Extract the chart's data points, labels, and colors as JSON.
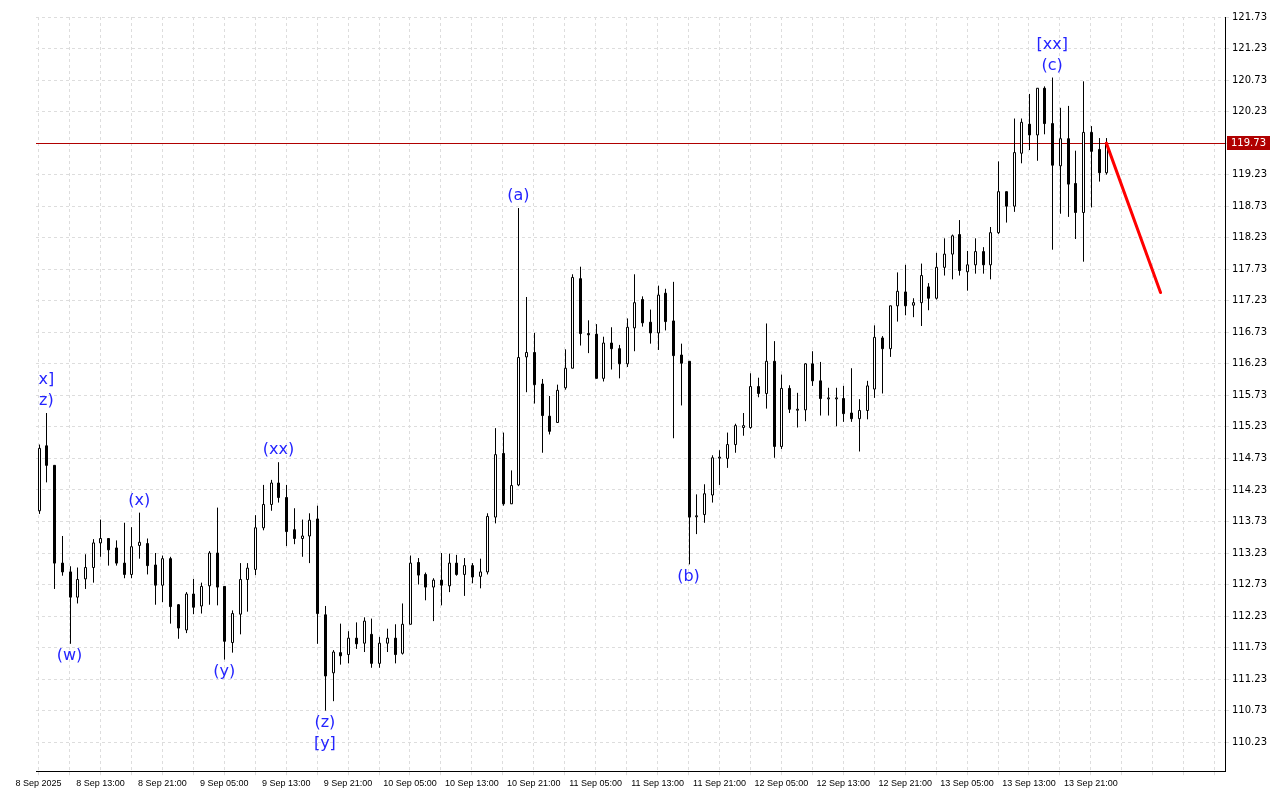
{
  "chart_data": {
    "type": "candlestick",
    "x": [
      "2025-09-08T05:00",
      "2025-09-08T06:00",
      "2025-09-08T07:00",
      "2025-09-08T08:00",
      "2025-09-08T09:00",
      "2025-09-08T10:00",
      "2025-09-08T11:00",
      "2025-09-08T12:00",
      "2025-09-08T13:00",
      "2025-09-08T14:00",
      "2025-09-08T15:00",
      "2025-09-08T16:00",
      "2025-09-08T17:00",
      "2025-09-08T18:00",
      "2025-09-08T19:00",
      "2025-09-08T20:00",
      "2025-09-08T21:00",
      "2025-09-08T22:00",
      "2025-09-08T23:00",
      "2025-09-09T00:00",
      "2025-09-09T01:00",
      "2025-09-09T02:00",
      "2025-09-09T03:00",
      "2025-09-09T04:00",
      "2025-09-09T05:00",
      "2025-09-09T06:00",
      "2025-09-09T07:00",
      "2025-09-09T08:00",
      "2025-09-09T09:00",
      "2025-09-09T10:00",
      "2025-09-09T11:00",
      "2025-09-09T12:00",
      "2025-09-09T13:00",
      "2025-09-09T14:00",
      "2025-09-09T15:00",
      "2025-09-09T16:00",
      "2025-09-09T17:00",
      "2025-09-09T18:00",
      "2025-09-09T19:00",
      "2025-09-09T20:00",
      "2025-09-09T21:00",
      "2025-09-09T22:00",
      "2025-09-09T23:00",
      "2025-09-10T00:00",
      "2025-09-10T01:00",
      "2025-09-10T02:00",
      "2025-09-10T03:00",
      "2025-09-10T04:00",
      "2025-09-10T05:00",
      "2025-09-10T06:00",
      "2025-09-10T07:00",
      "2025-09-10T08:00",
      "2025-09-10T09:00",
      "2025-09-10T10:00",
      "2025-09-10T11:00",
      "2025-09-10T12:00",
      "2025-09-10T13:00",
      "2025-09-10T14:00",
      "2025-09-10T15:00",
      "2025-09-10T16:00",
      "2025-09-10T17:00",
      "2025-09-10T18:00",
      "2025-09-10T19:00",
      "2025-09-10T20:00",
      "2025-09-10T21:00",
      "2025-09-10T22:00",
      "2025-09-10T23:00",
      "2025-09-11T00:00",
      "2025-09-11T01:00",
      "2025-09-11T02:00",
      "2025-09-11T03:00",
      "2025-09-11T04:00",
      "2025-09-11T05:00",
      "2025-09-11T06:00",
      "2025-09-11T07:00",
      "2025-09-11T08:00",
      "2025-09-11T09:00",
      "2025-09-11T10:00",
      "2025-09-11T11:00",
      "2025-09-11T12:00",
      "2025-09-11T13:00",
      "2025-09-11T14:00",
      "2025-09-11T15:00",
      "2025-09-11T16:00",
      "2025-09-11T17:00",
      "2025-09-11T18:00",
      "2025-09-11T19:00",
      "2025-09-11T20:00",
      "2025-09-11T21:00",
      "2025-09-11T22:00",
      "2025-09-11T23:00",
      "2025-09-12T00:00",
      "2025-09-12T01:00",
      "2025-09-12T02:00",
      "2025-09-12T03:00",
      "2025-09-12T04:00",
      "2025-09-12T05:00",
      "2025-09-12T06:00",
      "2025-09-12T07:00",
      "2025-09-12T08:00",
      "2025-09-12T09:00",
      "2025-09-12T10:00",
      "2025-09-12T11:00",
      "2025-09-12T12:00",
      "2025-09-12T13:00",
      "2025-09-12T14:00",
      "2025-09-12T15:00",
      "2025-09-12T16:00",
      "2025-09-12T17:00",
      "2025-09-12T18:00",
      "2025-09-12T19:00",
      "2025-09-12T20:00",
      "2025-09-12T21:00",
      "2025-09-12T22:00",
      "2025-09-12T23:00",
      "2025-09-13T00:00",
      "2025-09-13T01:00",
      "2025-09-13T02:00",
      "2025-09-13T03:00",
      "2025-09-13T04:00",
      "2025-09-13T05:00",
      "2025-09-13T06:00",
      "2025-09-13T07:00",
      "2025-09-13T08:00",
      "2025-09-13T09:00",
      "2025-09-13T10:00",
      "2025-09-13T11:00",
      "2025-09-13T12:00",
      "2025-09-13T13:00",
      "2025-09-13T14:00",
      "2025-09-13T15:00",
      "2025-09-13T16:00",
      "2025-09-13T17:00",
      "2025-09-13T18:00",
      "2025-09-13T19:00",
      "2025-09-13T20:00",
      "2025-09-13T21:00",
      "2025-09-13T22:00",
      "2025-09-13T23:00"
    ],
    "ohlc": [
      [
        113.9,
        114.95,
        113.85,
        114.89
      ],
      [
        114.93,
        115.45,
        114.35,
        114.62
      ],
      [
        114.62,
        114.62,
        112.66,
        113.07
      ],
      [
        113.07,
        113.5,
        112.87,
        112.93
      ],
      [
        112.93,
        113.02,
        111.79,
        112.53
      ],
      [
        112.53,
        113.0,
        112.43,
        112.81
      ],
      [
        112.82,
        113.21,
        112.66,
        113.0
      ],
      [
        113.0,
        113.45,
        112.76,
        113.39
      ],
      [
        113.39,
        113.76,
        113.17,
        113.46
      ],
      [
        113.46,
        113.46,
        113.03,
        113.28
      ],
      [
        113.31,
        113.43,
        113.03,
        113.07
      ],
      [
        113.07,
        113.71,
        112.83,
        112.89
      ],
      [
        112.89,
        113.64,
        112.83,
        113.33
      ],
      [
        113.35,
        113.87,
        113.14,
        113.4
      ],
      [
        113.38,
        113.46,
        112.89,
        113.03
      ],
      [
        113.04,
        113.23,
        112.41,
        112.72
      ],
      [
        112.72,
        113.19,
        112.45,
        113.14
      ],
      [
        113.14,
        113.17,
        112.11,
        112.38
      ],
      [
        112.41,
        112.42,
        111.87,
        112.04
      ],
      [
        112.01,
        112.61,
        111.96,
        112.58
      ],
      [
        112.58,
        112.82,
        112.26,
        112.37
      ],
      [
        112.39,
        112.76,
        112.27,
        112.7
      ],
      [
        112.71,
        113.26,
        112.41,
        113.23
      ],
      [
        113.23,
        113.95,
        112.4,
        112.69
      ],
      [
        112.7,
        112.7,
        111.54,
        111.83
      ],
      [
        111.81,
        112.32,
        111.65,
        112.27
      ],
      [
        112.26,
        113.07,
        111.94,
        112.81
      ],
      [
        112.81,
        113.07,
        112.3,
        112.99
      ],
      [
        112.97,
        113.83,
        112.88,
        113.63
      ],
      [
        113.63,
        114.31,
        113.59,
        114.0
      ],
      [
        114.0,
        114.39,
        113.9,
        114.34
      ],
      [
        114.34,
        114.67,
        114.03,
        114.11
      ],
      [
        114.11,
        114.31,
        113.34,
        113.57
      ],
      [
        113.6,
        113.94,
        113.37,
        113.46
      ],
      [
        113.46,
        113.76,
        113.17,
        113.5
      ],
      [
        113.5,
        113.86,
        113.07,
        113.75
      ],
      [
        113.77,
        113.98,
        111.79,
        112.27
      ],
      [
        112.25,
        112.39,
        110.73,
        111.28
      ],
      [
        111.33,
        111.69,
        110.88,
        111.66
      ],
      [
        111.65,
        112.11,
        111.46,
        111.6
      ],
      [
        111.62,
        111.99,
        111.48,
        111.88
      ],
      [
        111.88,
        112.13,
        111.71,
        111.79
      ],
      [
        111.8,
        112.21,
        111.66,
        112.15
      ],
      [
        111.94,
        112.19,
        111.41,
        111.48
      ],
      [
        111.48,
        111.9,
        111.41,
        111.8
      ],
      [
        111.8,
        112.03,
        111.66,
        111.88
      ],
      [
        111.88,
        112.1,
        111.48,
        111.62
      ],
      [
        111.64,
        112.43,
        111.62,
        112.1
      ],
      [
        112.1,
        113.19,
        112.1,
        113.07
      ],
      [
        113.08,
        113.15,
        112.73,
        112.88
      ],
      [
        112.89,
        112.92,
        112.48,
        112.69
      ],
      [
        112.69,
        112.83,
        112.15,
        112.8
      ],
      [
        112.8,
        113.23,
        112.4,
        112.72
      ],
      [
        112.71,
        113.22,
        112.61,
        113.07
      ],
      [
        113.07,
        113.2,
        112.87,
        112.89
      ],
      [
        112.89,
        113.15,
        112.55,
        113.03
      ],
      [
        113.03,
        113.07,
        112.75,
        112.85
      ],
      [
        112.86,
        113.14,
        112.67,
        112.93
      ],
      [
        112.93,
        113.86,
        112.89,
        113.81
      ],
      [
        113.8,
        115.21,
        113.7,
        114.79
      ],
      [
        114.81,
        115.14,
        113.98,
        114.01
      ],
      [
        114.01,
        114.54,
        114.01,
        114.3
      ],
      [
        114.31,
        118.7,
        114.29,
        116.33
      ],
      [
        116.34,
        117.29,
        115.78,
        116.41
      ],
      [
        116.41,
        116.72,
        115.6,
        115.9
      ],
      [
        115.91,
        115.99,
        114.82,
        115.41
      ],
      [
        115.4,
        115.72,
        115.11,
        115.16
      ],
      [
        115.3,
        115.9,
        115.3,
        115.81
      ],
      [
        115.85,
        116.46,
        115.82,
        116.16
      ],
      [
        116.16,
        117.65,
        116.16,
        117.6
      ],
      [
        117.58,
        117.77,
        116.52,
        116.71
      ],
      [
        116.71,
        116.92,
        116.4,
        116.69
      ],
      [
        116.7,
        116.86,
        116.0,
        116.0
      ],
      [
        116.0,
        116.66,
        115.95,
        116.56
      ],
      [
        116.56,
        116.81,
        116.14,
        116.47
      ],
      [
        116.47,
        116.53,
        116.0,
        116.23
      ],
      [
        116.23,
        116.95,
        116.18,
        116.81
      ],
      [
        116.8,
        117.65,
        116.43,
        117.2
      ],
      [
        117.25,
        117.3,
        116.82,
        116.88
      ],
      [
        116.89,
        117.09,
        116.55,
        116.72
      ],
      [
        116.72,
        117.47,
        116.45,
        117.32
      ],
      [
        117.35,
        117.42,
        116.76,
        116.9
      ],
      [
        116.91,
        117.53,
        115.05,
        116.36
      ],
      [
        116.37,
        116.55,
        115.57,
        116.24
      ],
      [
        116.27,
        116.27,
        113.05,
        113.8
      ],
      [
        113.82,
        114.16,
        113.53,
        113.82
      ],
      [
        113.84,
        114.32,
        113.71,
        114.17
      ],
      [
        114.15,
        114.78,
        114.03,
        114.74
      ],
      [
        114.74,
        114.86,
        114.31,
        114.75
      ],
      [
        114.73,
        115.14,
        114.58,
        114.95
      ],
      [
        114.95,
        115.28,
        114.82,
        115.25
      ],
      [
        115.22,
        115.45,
        115.09,
        115.25
      ],
      [
        115.22,
        116.08,
        115.2,
        115.87
      ],
      [
        115.87,
        116.01,
        115.7,
        115.76
      ],
      [
        115.76,
        116.87,
        115.52,
        116.27
      ],
      [
        116.27,
        116.59,
        114.74,
        114.92
      ],
      [
        114.92,
        116.06,
        114.88,
        115.84
      ],
      [
        115.84,
        115.89,
        115.45,
        115.51
      ],
      [
        115.51,
        115.77,
        115.22,
        115.51
      ],
      [
        115.5,
        116.24,
        115.32,
        116.23
      ],
      [
        116.23,
        116.43,
        115.88,
        115.96
      ],
      [
        115.96,
        116.26,
        115.41,
        115.68
      ],
      [
        115.69,
        115.85,
        115.41,
        115.69
      ],
      [
        115.69,
        115.85,
        115.24,
        115.69
      ],
      [
        115.68,
        115.88,
        115.31,
        115.44
      ],
      [
        115.45,
        116.16,
        115.31,
        115.36
      ],
      [
        115.36,
        115.67,
        114.84,
        115.49
      ],
      [
        115.49,
        115.96,
        115.35,
        115.88
      ],
      [
        115.83,
        116.84,
        115.69,
        116.65
      ],
      [
        116.64,
        116.67,
        115.76,
        116.47
      ],
      [
        116.47,
        117.15,
        116.34,
        117.15
      ],
      [
        117.15,
        117.68,
        116.9,
        117.38
      ],
      [
        117.37,
        117.8,
        117.0,
        117.15
      ],
      [
        117.16,
        117.27,
        116.97,
        117.2
      ],
      [
        117.2,
        117.82,
        116.83,
        117.63
      ],
      [
        117.45,
        117.51,
        117.08,
        117.27
      ],
      [
        117.27,
        117.99,
        117.25,
        117.76
      ],
      [
        117.76,
        118.22,
        117.63,
        117.97
      ],
      [
        117.97,
        118.28,
        117.57,
        118.26
      ],
      [
        118.28,
        118.51,
        117.63,
        117.71
      ],
      [
        117.69,
        118.02,
        117.39,
        117.8
      ],
      [
        117.8,
        118.22,
        117.66,
        118.01
      ],
      [
        118.01,
        118.08,
        117.66,
        117.8
      ],
      [
        117.8,
        118.4,
        117.57,
        118.31
      ],
      [
        118.31,
        119.44,
        118.29,
        118.96
      ],
      [
        118.96,
        118.96,
        118.47,
        118.73
      ],
      [
        118.73,
        120.12,
        118.64,
        119.58
      ],
      [
        119.57,
        120.12,
        119.41,
        120.06
      ],
      [
        120.03,
        120.51,
        119.62,
        119.86
      ],
      [
        119.86,
        120.6,
        119.45,
        120.6
      ],
      [
        120.6,
        120.63,
        119.87,
        120.04
      ],
      [
        120.04,
        120.77,
        118.04,
        119.38
      ],
      [
        119.37,
        120.29,
        118.61,
        119.8
      ],
      [
        119.8,
        120.32,
        118.56,
        119.08
      ],
      [
        119.09,
        119.61,
        118.21,
        118.63
      ],
      [
        118.63,
        120.71,
        117.85,
        119.9
      ],
      [
        119.9,
        120.0,
        118.71,
        119.6
      ],
      [
        119.63,
        119.81,
        119.12,
        119.26
      ],
      [
        119.26,
        119.81,
        119.23,
        119.73
      ]
    ],
    "series": [
      {
        "type": "line",
        "color": "#ff0000",
        "x": [
          "2025-09-13T23:00",
          "2025-09-14T06:00"
        ],
        "values": [
          119.73,
          117.36
        ]
      }
    ],
    "ref_lines": [
      {
        "axis": "y",
        "value": 119.73,
        "label": "119.73",
        "color": "#b00000"
      }
    ],
    "annotations": [
      {
        "text": "z)",
        "x": "2025-09-08T06:00",
        "y": 115.45
      },
      {
        "text": "x]",
        "x": "2025-09-08T06:00",
        "y": 115.45
      },
      {
        "text": "(w)",
        "x": "2025-09-08T09:00",
        "y": 111.79
      },
      {
        "text": "(x)",
        "x": "2025-09-08T18:00",
        "y": 113.87
      },
      {
        "text": "(y)",
        "x": "2025-09-09T05:00",
        "y": 111.54
      },
      {
        "text": "(xx)",
        "x": "2025-09-09T12:00",
        "y": 114.67
      },
      {
        "text": "(z)",
        "x": "2025-09-09T18:00",
        "y": 110.73
      },
      {
        "text": "[y]",
        "x": "2025-09-09T18:00",
        "y": 110.73
      },
      {
        "text": "(a)",
        "x": "2025-09-10T19:00",
        "y": 118.7
      },
      {
        "text": "(b)",
        "x": "2025-09-11T17:00",
        "y": 113.05
      },
      {
        "text": "(c)",
        "x": "2025-09-13T16:00",
        "y": 120.77
      },
      {
        "text": "[xx]",
        "x": "2025-09-13T16:00",
        "y": 120.77
      }
    ],
    "xlim": [
      "2025-09-08T04:40",
      "2025-09-14T14:20"
    ],
    "xticks": [
      {
        "value": "2025-09-08T05:00",
        "label": "8 Sep 2025"
      },
      {
        "value": "2025-09-08T09:00",
        "label": null
      },
      {
        "value": "2025-09-08T13:00",
        "label": "8 Sep 13:00"
      },
      {
        "value": "2025-09-08T17:00",
        "label": null
      },
      {
        "value": "2025-09-08T21:00",
        "label": "8 Sep 21:00"
      },
      {
        "value": "2025-09-09T01:00",
        "label": null
      },
      {
        "value": "2025-09-09T05:00",
        "label": "9 Sep 05:00"
      },
      {
        "value": "2025-09-09T09:00",
        "label": null
      },
      {
        "value": "2025-09-09T13:00",
        "label": "9 Sep 13:00"
      },
      {
        "value": "2025-09-09T17:00",
        "label": null
      },
      {
        "value": "2025-09-09T21:00",
        "label": "9 Sep 21:00"
      },
      {
        "value": "2025-09-10T01:00",
        "label": null
      },
      {
        "value": "2025-09-10T05:00",
        "label": "10 Sep 05:00"
      },
      {
        "value": "2025-09-10T09:00",
        "label": null
      },
      {
        "value": "2025-09-10T13:00",
        "label": "10 Sep 13:00"
      },
      {
        "value": "2025-09-10T17:00",
        "label": null
      },
      {
        "value": "2025-09-10T21:00",
        "label": "10 Sep 21:00"
      },
      {
        "value": "2025-09-11T01:00",
        "label": null
      },
      {
        "value": "2025-09-11T05:00",
        "label": "11 Sep 05:00"
      },
      {
        "value": "2025-09-11T09:00",
        "label": null
      },
      {
        "value": "2025-09-11T13:00",
        "label": "11 Sep 13:00"
      },
      {
        "value": "2025-09-11T17:00",
        "label": null
      },
      {
        "value": "2025-09-11T21:00",
        "label": "11 Sep 21:00"
      },
      {
        "value": "2025-09-12T01:00",
        "label": null
      },
      {
        "value": "2025-09-12T05:00",
        "label": "12 Sep 05:00"
      },
      {
        "value": "2025-09-12T09:00",
        "label": null
      },
      {
        "value": "2025-09-12T13:00",
        "label": "12 Sep 13:00"
      },
      {
        "value": "2025-09-12T17:00",
        "label": null
      },
      {
        "value": "2025-09-12T21:00",
        "label": "12 Sep 21:00"
      },
      {
        "value": "2025-09-13T01:00",
        "label": null
      },
      {
        "value": "2025-09-13T05:00",
        "label": "13 Sep 05:00"
      },
      {
        "value": "2025-09-13T09:00",
        "label": null
      },
      {
        "value": "2025-09-13T13:00",
        "label": "13 Sep 13:00"
      },
      {
        "value": "2025-09-13T17:00",
        "label": null
      },
      {
        "value": "2025-09-13T21:00",
        "label": "13 Sep 21:00"
      },
      {
        "value": "2025-09-14T01:00",
        "label": null
      },
      {
        "value": "2025-09-14T05:00",
        "label": null
      },
      {
        "value": "2025-09-14T09:00",
        "label": null
      },
      {
        "value": "2025-09-14T13:00",
        "label": null
      }
    ],
    "ylim": [
      109.77,
      121.73
    ],
    "yticks": [
      110.23,
      110.73,
      111.23,
      111.73,
      112.23,
      112.73,
      113.23,
      113.73,
      114.23,
      114.73,
      115.23,
      115.73,
      116.23,
      116.73,
      117.23,
      117.73,
      118.23,
      118.73,
      119.23,
      {
        "value": 119.73,
        "label": null
      },
      120.23,
      120.73,
      121.23,
      121.73
    ],
    "grid": true,
    "legend": false
  }
}
